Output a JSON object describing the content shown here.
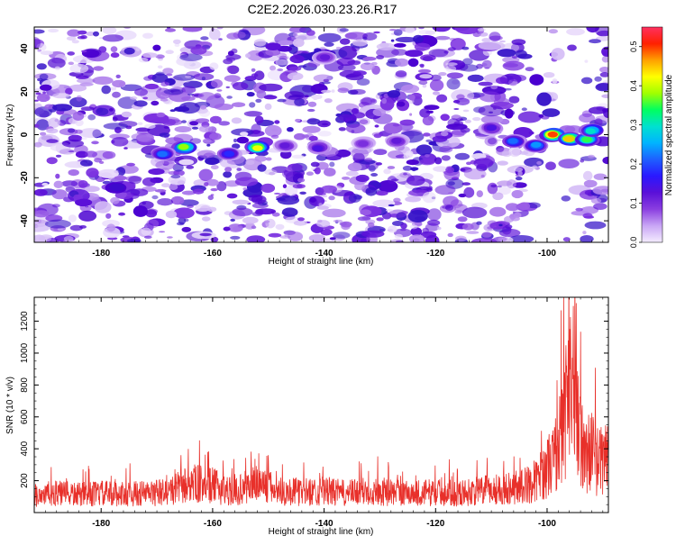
{
  "figure_title": "C2E2.2026.030.23.26.R17",
  "chart_data": [
    {
      "type": "heatmap",
      "title": "",
      "xlabel": "Height of straight line (km)",
      "ylabel": "Frequency (Hz)",
      "xlim": [
        -192,
        -89
      ],
      "ylim": [
        -50,
        50
      ],
      "xticks": [
        -180,
        -160,
        -140,
        -120,
        -100
      ],
      "yticks": [
        -40,
        -20,
        0,
        20,
        40
      ],
      "colorbar": {
        "label": "Normalized spectral amplitude",
        "range": [
          0.0,
          0.55
        ],
        "ticks": [
          "0.0",
          "0.1",
          "0.2",
          "0.3",
          "0.4",
          "0.5"
        ],
        "colors": [
          "#f4ecff",
          "#c9a6f5",
          "#8a3ee0",
          "#5a10d8",
          "#2a18ff",
          "#1e60ff",
          "#00b4ff",
          "#00e0d0",
          "#00ff60",
          "#a0ff00",
          "#ffff00",
          "#ffa000",
          "#ff2000",
          "#ff3060"
        ]
      },
      "features": [
        {
          "x": -165,
          "y": -6,
          "value": 0.38
        },
        {
          "x": -169,
          "y": -9,
          "value": 0.22
        },
        {
          "x": -152,
          "y": -6,
          "value": 0.42
        },
        {
          "x": -157,
          "y": -9,
          "value": 0.18
        },
        {
          "x": -147,
          "y": -5,
          "value": 0.12
        },
        {
          "x": -141,
          "y": -6,
          "value": 0.14
        },
        {
          "x": -133,
          "y": -4,
          "value": 0.1
        },
        {
          "x": -127,
          "y": -3,
          "value": 0.12
        },
        {
          "x": -110,
          "y": 3,
          "value": 0.14
        },
        {
          "x": -106,
          "y": -3,
          "value": 0.22
        },
        {
          "x": -102,
          "y": -5,
          "value": 0.24
        },
        {
          "x": -99,
          "y": 0,
          "value": 0.5
        },
        {
          "x": -96,
          "y": -2,
          "value": 0.45
        },
        {
          "x": -93,
          "y": -2,
          "value": 0.35
        },
        {
          "x": -92,
          "y": 2,
          "value": 0.3
        },
        {
          "x": -140,
          "y": 36,
          "value": 0.12
        }
      ]
    },
    {
      "type": "line",
      "title": "",
      "xlabel": "Height of straight line (km)",
      "ylabel": "SNR (10 * v/v)",
      "xlim": [
        -192,
        -89
      ],
      "ylim": [
        0,
        1350
      ],
      "xticks": [
        -180,
        -160,
        -140,
        -120,
        -100
      ],
      "yticks": [
        200,
        400,
        600,
        800,
        1000,
        1200
      ],
      "color": "#e8302a",
      "series": [
        {
          "x": [
            -192,
            -188,
            -184,
            -180,
            -176,
            -172,
            -168,
            -164,
            -160,
            -156,
            -152,
            -150,
            -148,
            -144,
            -140,
            -136,
            -132,
            -128,
            -124,
            -120,
            -116,
            -112,
            -108,
            -104,
            -102,
            -100,
            -98,
            -97,
            -96,
            -95,
            -94,
            -93,
            -92,
            -91,
            -90,
            -89
          ],
          "values": [
            140,
            150,
            140,
            150,
            145,
            150,
            160,
            230,
            210,
            160,
            240,
            200,
            170,
            160,
            170,
            150,
            170,
            160,
            150,
            160,
            150,
            170,
            190,
            210,
            250,
            350,
            500,
            700,
            750,
            850,
            550,
            450,
            500,
            400,
            430,
            450
          ]
        }
      ]
    }
  ]
}
